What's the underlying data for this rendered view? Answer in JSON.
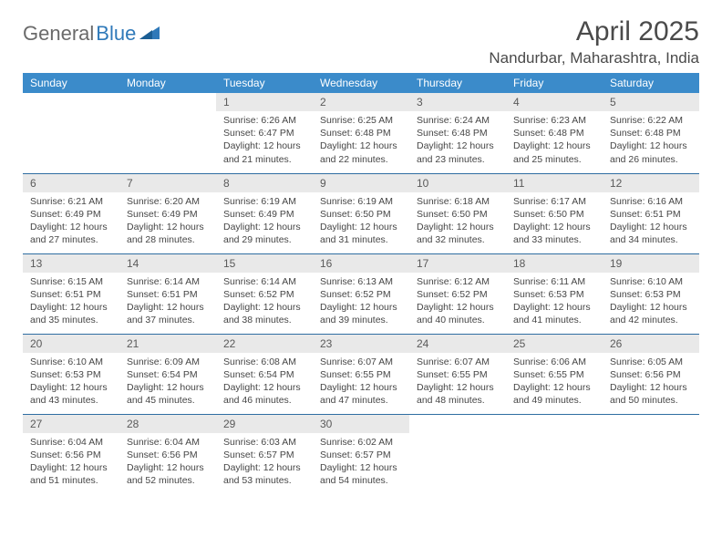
{
  "brand": {
    "part1": "General",
    "part2": "Blue"
  },
  "title": "April 2025",
  "location": "Nandurbar, Maharashtra, India",
  "colors": {
    "header_bg": "#3b8bca",
    "header_text": "#ffffff",
    "daynum_bg": "#e9e9e9",
    "week_sep": "#2f6ea2",
    "logo_gray": "#6a6a6a",
    "logo_blue": "#2f79b9"
  },
  "day_headers": [
    "Sunday",
    "Monday",
    "Tuesday",
    "Wednesday",
    "Thursday",
    "Friday",
    "Saturday"
  ],
  "weeks": [
    [
      null,
      null,
      {
        "n": "1",
        "sr": "Sunrise: 6:26 AM",
        "ss": "Sunset: 6:47 PM",
        "dl": "Daylight: 12 hours and 21 minutes."
      },
      {
        "n": "2",
        "sr": "Sunrise: 6:25 AM",
        "ss": "Sunset: 6:48 PM",
        "dl": "Daylight: 12 hours and 22 minutes."
      },
      {
        "n": "3",
        "sr": "Sunrise: 6:24 AM",
        "ss": "Sunset: 6:48 PM",
        "dl": "Daylight: 12 hours and 23 minutes."
      },
      {
        "n": "4",
        "sr": "Sunrise: 6:23 AM",
        "ss": "Sunset: 6:48 PM",
        "dl": "Daylight: 12 hours and 25 minutes."
      },
      {
        "n": "5",
        "sr": "Sunrise: 6:22 AM",
        "ss": "Sunset: 6:48 PM",
        "dl": "Daylight: 12 hours and 26 minutes."
      }
    ],
    [
      {
        "n": "6",
        "sr": "Sunrise: 6:21 AM",
        "ss": "Sunset: 6:49 PM",
        "dl": "Daylight: 12 hours and 27 minutes."
      },
      {
        "n": "7",
        "sr": "Sunrise: 6:20 AM",
        "ss": "Sunset: 6:49 PM",
        "dl": "Daylight: 12 hours and 28 minutes."
      },
      {
        "n": "8",
        "sr": "Sunrise: 6:19 AM",
        "ss": "Sunset: 6:49 PM",
        "dl": "Daylight: 12 hours and 29 minutes."
      },
      {
        "n": "9",
        "sr": "Sunrise: 6:19 AM",
        "ss": "Sunset: 6:50 PM",
        "dl": "Daylight: 12 hours and 31 minutes."
      },
      {
        "n": "10",
        "sr": "Sunrise: 6:18 AM",
        "ss": "Sunset: 6:50 PM",
        "dl": "Daylight: 12 hours and 32 minutes."
      },
      {
        "n": "11",
        "sr": "Sunrise: 6:17 AM",
        "ss": "Sunset: 6:50 PM",
        "dl": "Daylight: 12 hours and 33 minutes."
      },
      {
        "n": "12",
        "sr": "Sunrise: 6:16 AM",
        "ss": "Sunset: 6:51 PM",
        "dl": "Daylight: 12 hours and 34 minutes."
      }
    ],
    [
      {
        "n": "13",
        "sr": "Sunrise: 6:15 AM",
        "ss": "Sunset: 6:51 PM",
        "dl": "Daylight: 12 hours and 35 minutes."
      },
      {
        "n": "14",
        "sr": "Sunrise: 6:14 AM",
        "ss": "Sunset: 6:51 PM",
        "dl": "Daylight: 12 hours and 37 minutes."
      },
      {
        "n": "15",
        "sr": "Sunrise: 6:14 AM",
        "ss": "Sunset: 6:52 PM",
        "dl": "Daylight: 12 hours and 38 minutes."
      },
      {
        "n": "16",
        "sr": "Sunrise: 6:13 AM",
        "ss": "Sunset: 6:52 PM",
        "dl": "Daylight: 12 hours and 39 minutes."
      },
      {
        "n": "17",
        "sr": "Sunrise: 6:12 AM",
        "ss": "Sunset: 6:52 PM",
        "dl": "Daylight: 12 hours and 40 minutes."
      },
      {
        "n": "18",
        "sr": "Sunrise: 6:11 AM",
        "ss": "Sunset: 6:53 PM",
        "dl": "Daylight: 12 hours and 41 minutes."
      },
      {
        "n": "19",
        "sr": "Sunrise: 6:10 AM",
        "ss": "Sunset: 6:53 PM",
        "dl": "Daylight: 12 hours and 42 minutes."
      }
    ],
    [
      {
        "n": "20",
        "sr": "Sunrise: 6:10 AM",
        "ss": "Sunset: 6:53 PM",
        "dl": "Daylight: 12 hours and 43 minutes."
      },
      {
        "n": "21",
        "sr": "Sunrise: 6:09 AM",
        "ss": "Sunset: 6:54 PM",
        "dl": "Daylight: 12 hours and 45 minutes."
      },
      {
        "n": "22",
        "sr": "Sunrise: 6:08 AM",
        "ss": "Sunset: 6:54 PM",
        "dl": "Daylight: 12 hours and 46 minutes."
      },
      {
        "n": "23",
        "sr": "Sunrise: 6:07 AM",
        "ss": "Sunset: 6:55 PM",
        "dl": "Daylight: 12 hours and 47 minutes."
      },
      {
        "n": "24",
        "sr": "Sunrise: 6:07 AM",
        "ss": "Sunset: 6:55 PM",
        "dl": "Daylight: 12 hours and 48 minutes."
      },
      {
        "n": "25",
        "sr": "Sunrise: 6:06 AM",
        "ss": "Sunset: 6:55 PM",
        "dl": "Daylight: 12 hours and 49 minutes."
      },
      {
        "n": "26",
        "sr": "Sunrise: 6:05 AM",
        "ss": "Sunset: 6:56 PM",
        "dl": "Daylight: 12 hours and 50 minutes."
      }
    ],
    [
      {
        "n": "27",
        "sr": "Sunrise: 6:04 AM",
        "ss": "Sunset: 6:56 PM",
        "dl": "Daylight: 12 hours and 51 minutes."
      },
      {
        "n": "28",
        "sr": "Sunrise: 6:04 AM",
        "ss": "Sunset: 6:56 PM",
        "dl": "Daylight: 12 hours and 52 minutes."
      },
      {
        "n": "29",
        "sr": "Sunrise: 6:03 AM",
        "ss": "Sunset: 6:57 PM",
        "dl": "Daylight: 12 hours and 53 minutes."
      },
      {
        "n": "30",
        "sr": "Sunrise: 6:02 AM",
        "ss": "Sunset: 6:57 PM",
        "dl": "Daylight: 12 hours and 54 minutes."
      },
      null,
      null,
      null
    ]
  ]
}
